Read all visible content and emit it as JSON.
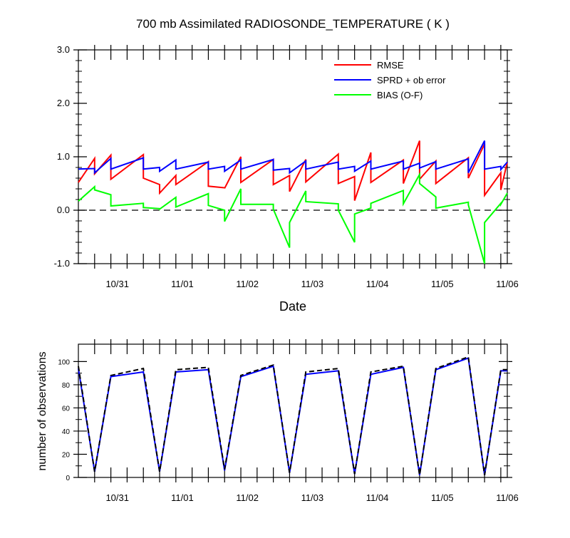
{
  "title": "700 mb Assimilated RADIOSONDE_TEMPERATURE ( K )",
  "chart_data": [
    {
      "type": "line",
      "xlabel": "Date",
      "ylabel": "",
      "x_tick_labels": [
        "10/31",
        "11/01",
        "11/02",
        "11/03",
        "11/04",
        "11/05",
        "11/06"
      ],
      "xlim": [
        0,
        6.6
      ],
      "ylim": [
        -1.0,
        3.0
      ],
      "y_ticks": [
        -1.0,
        0.0,
        1.0,
        2.0,
        3.0
      ],
      "y_tick_labels": [
        "-1.0",
        "0.0",
        "1.0",
        "2.0",
        "3.0"
      ],
      "reference_line": {
        "y": 0.0,
        "style": "dashed"
      },
      "legend_placement": "top-right",
      "x": [
        0.0,
        0.25,
        0.25,
        0.5,
        0.5,
        1.0,
        1.0,
        1.25,
        1.25,
        1.5,
        1.5,
        2.0,
        2.0,
        2.25,
        2.25,
        2.5,
        2.5,
        3.0,
        3.0,
        3.25,
        3.25,
        3.5,
        3.5,
        4.0,
        4.0,
        4.25,
        4.25,
        4.5,
        4.5,
        5.0,
        5.0,
        5.25,
        5.25,
        5.5,
        5.5,
        6.0,
        6.0,
        6.25,
        6.25,
        6.5,
        6.5,
        6.6
      ],
      "series": [
        {
          "name": "RMSE",
          "color": "#ff0000",
          "values": [
            0.52,
            0.97,
            0.68,
            1.03,
            0.58,
            1.04,
            0.6,
            0.48,
            0.32,
            0.65,
            0.48,
            0.91,
            0.45,
            0.42,
            0.41,
            1.0,
            0.52,
            0.95,
            0.48,
            0.65,
            0.35,
            0.95,
            0.53,
            1.05,
            0.5,
            0.63,
            0.18,
            1.08,
            0.52,
            0.94,
            0.5,
            1.3,
            0.58,
            0.92,
            0.5,
            0.98,
            0.6,
            1.24,
            0.28,
            0.7,
            0.38,
            0.9
          ]
        },
        {
          "name": "SPRD + ob error",
          "color": "#0000ff",
          "values": [
            0.77,
            0.78,
            0.7,
            0.97,
            0.77,
            0.98,
            0.77,
            0.8,
            0.73,
            0.94,
            0.77,
            0.9,
            0.77,
            0.82,
            0.73,
            0.94,
            0.77,
            0.95,
            0.75,
            0.78,
            0.7,
            0.92,
            0.77,
            0.9,
            0.77,
            0.82,
            0.73,
            0.92,
            0.77,
            0.92,
            0.77,
            0.88,
            0.79,
            0.91,
            0.77,
            0.96,
            0.7,
            1.3,
            0.77,
            0.82,
            0.76,
            0.9
          ]
        },
        {
          "name": "BIAS (O-F)",
          "color": "#00ff00",
          "values": [
            0.17,
            0.44,
            0.38,
            0.29,
            0.08,
            0.13,
            0.05,
            0.03,
            0.02,
            0.24,
            0.06,
            0.31,
            0.09,
            0.0,
            -0.21,
            0.4,
            0.11,
            0.11,
            0.02,
            -0.7,
            -0.23,
            0.36,
            0.16,
            0.12,
            0.0,
            -0.6,
            -0.07,
            0.04,
            0.13,
            0.37,
            0.12,
            0.67,
            0.5,
            0.25,
            0.04,
            0.15,
            0.1,
            -1.0,
            -0.23,
            0.13,
            0.11,
            0.32
          ]
        }
      ]
    },
    {
      "type": "line",
      "xlabel": "",
      "ylabel": "number of observations",
      "x_tick_labels": [
        "10/31",
        "11/01",
        "11/02",
        "11/03",
        "11/04",
        "11/05",
        "11/06"
      ],
      "xlim": [
        0,
        6.6
      ],
      "ylim": [
        0,
        115
      ],
      "y_ticks": [
        0,
        20,
        40,
        60,
        80,
        100
      ],
      "y_tick_labels": [
        "0",
        "20",
        "40",
        "60",
        "80",
        "100"
      ],
      "x": [
        0.0,
        0.25,
        0.5,
        1.0,
        1.25,
        1.5,
        2.0,
        2.25,
        2.5,
        3.0,
        3.25,
        3.5,
        4.0,
        4.25,
        4.5,
        5.0,
        5.25,
        5.5,
        6.0,
        6.25,
        6.5,
        6.6
      ],
      "series": [
        {
          "color": "#0000ff",
          "style": "solid",
          "values": [
            94,
            5,
            87,
            91,
            5,
            91,
            93,
            6,
            87,
            96,
            4,
            89,
            92,
            3,
            89,
            95,
            2,
            93,
            103,
            2,
            92,
            92
          ]
        },
        {
          "color": "#000000",
          "style": "dashed",
          "values": [
            96,
            5,
            88,
            94,
            5,
            93,
            95,
            7,
            88,
            97,
            4,
            91,
            94,
            3,
            91,
            96,
            2,
            94,
            104,
            2,
            93,
            93
          ]
        }
      ]
    }
  ]
}
